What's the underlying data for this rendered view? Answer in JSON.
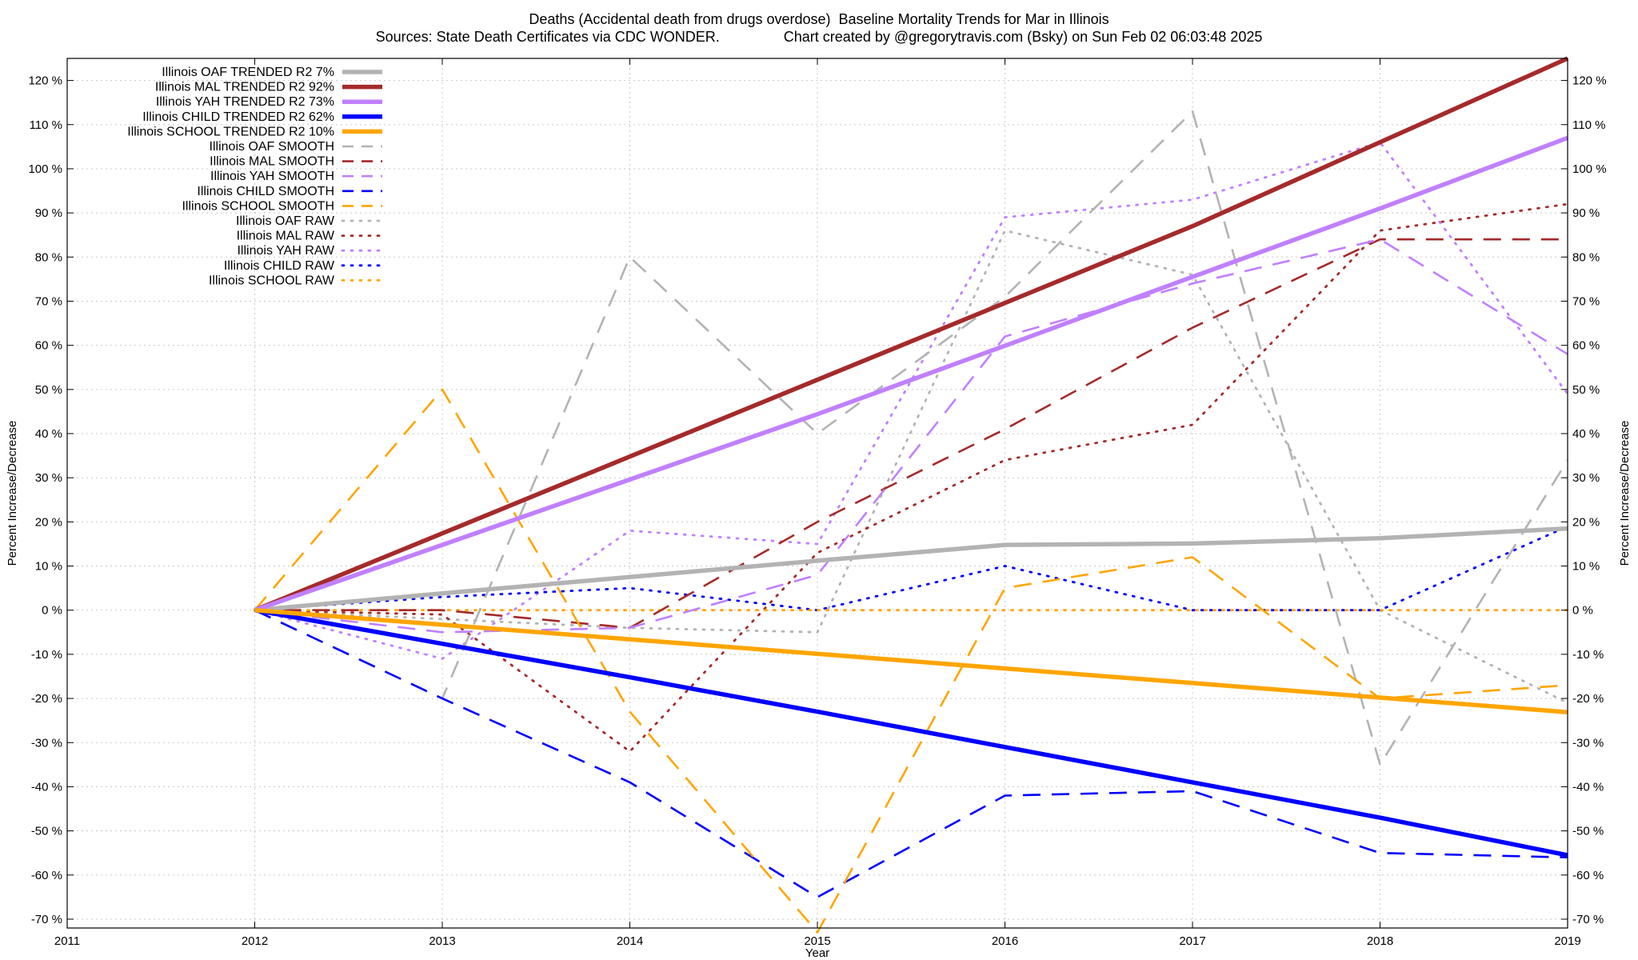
{
  "title_line1": "Deaths (Accidental death from drugs overdose)  Baseline Mortality Trends for Mar in Illinois",
  "title_line2": "Sources: State Death Certificates via CDC WONDER.                Chart created by @gregorytravis.com (Bsky) on Sun Feb 02 06:03:48 2025",
  "chart_data": {
    "type": "line",
    "xlabel": "Year",
    "ylabel": "Percent Increase/Decrease",
    "y2label": "Percent Increase/Decrease",
    "xlim": [
      2011,
      2019
    ],
    "ylim": [
      -72,
      125
    ],
    "x_ticks": [
      2011,
      2012,
      2013,
      2014,
      2015,
      2016,
      2017,
      2018,
      2019
    ],
    "y_ticks": [
      -70,
      -60,
      -50,
      -40,
      -30,
      -20,
      -10,
      0,
      10,
      20,
      30,
      40,
      50,
      60,
      70,
      80,
      90,
      100,
      110,
      120
    ],
    "y_tick_suffix": " %",
    "grid": true,
    "legend_position": "top-left",
    "series": [
      {
        "name": "Illinois OAF TRENDED R2   7%",
        "style": "trend",
        "color": "#b3b3b3",
        "x": [
          2012,
          2013,
          2014,
          2015,
          2016,
          2017,
          2018,
          2019
        ],
        "y": [
          0,
          3.8,
          7.5,
          11.2,
          14.8,
          15.1,
          16.3,
          18.5
        ]
      },
      {
        "name": "Illinois MAL TRENDED R2  92%",
        "style": "trend",
        "color": "#a52a2a",
        "x": [
          2012,
          2013,
          2014,
          2015,
          2016,
          2017,
          2018,
          2019
        ],
        "y": [
          0,
          17.4,
          34.8,
          52.2,
          69.6,
          87,
          106,
          125
        ]
      },
      {
        "name": "Illinois YAH TRENDED R2  73%",
        "style": "trend",
        "color": "#c080ff",
        "x": [
          2012,
          2013,
          2014,
          2015,
          2016,
          2017,
          2018,
          2019
        ],
        "y": [
          0,
          14.8,
          29.6,
          44.4,
          59.9,
          75.5,
          91,
          107
        ]
      },
      {
        "name": "Illinois CHILD TRENDED R2  62%",
        "style": "trend",
        "color": "#0000ff",
        "x": [
          2012,
          2013,
          2014,
          2015,
          2016,
          2017,
          2018,
          2019
        ],
        "y": [
          0,
          -7.6,
          -15.2,
          -23,
          -31,
          -39,
          -47,
          -55.5
        ]
      },
      {
        "name": "Illinois SCHOOL TRENDED R2  10%",
        "style": "trend",
        "color": "#ffa500",
        "x": [
          2012,
          2013,
          2014,
          2015,
          2016,
          2017,
          2018,
          2019
        ],
        "y": [
          0,
          -3.3,
          -6.6,
          -9.9,
          -13.2,
          -16.5,
          -19.8,
          -23.1
        ]
      },
      {
        "name": "Illinois OAF SMOOTH",
        "style": "smooth",
        "color": "#b3b3b3",
        "x": [
          2012,
          2013,
          2014,
          2015,
          2016,
          2017,
          2018,
          2019
        ],
        "y": [
          0,
          -20,
          80,
          40,
          71,
          113,
          -35,
          34
        ]
      },
      {
        "name": "Illinois MAL SMOOTH",
        "style": "smooth",
        "color": "#a52a2a",
        "x": [
          2012,
          2013,
          2014,
          2015,
          2016,
          2017,
          2018,
          2019
        ],
        "y": [
          0,
          0,
          -4,
          20,
          41,
          64,
          84,
          84
        ]
      },
      {
        "name": "Illinois YAH SMOOTH",
        "style": "smooth",
        "color": "#c080ff",
        "x": [
          2012,
          2013,
          2014,
          2015,
          2016,
          2017,
          2018,
          2019
        ],
        "y": [
          0,
          -5,
          -4,
          8,
          62,
          74,
          84,
          58
        ]
      },
      {
        "name": "Illinois CHILD SMOOTH",
        "style": "smooth",
        "color": "#0000ff",
        "x": [
          2012,
          2013,
          2014,
          2015,
          2016,
          2017,
          2018,
          2019
        ],
        "y": [
          0,
          -20,
          -39,
          -65,
          -42,
          -41,
          -55,
          -56
        ]
      },
      {
        "name": "Illinois SCHOOL SMOOTH",
        "style": "smooth",
        "color": "#ffa500",
        "x": [
          2012,
          2013,
          2014,
          2015,
          2016,
          2017,
          2018,
          2019
        ],
        "y": [
          0,
          50,
          -23,
          -73,
          5,
          12,
          -20,
          -17
        ]
      },
      {
        "name": "Illinois OAF RAW",
        "style": "raw",
        "color": "#b3b3b3",
        "x": [
          2012,
          2013,
          2014,
          2015,
          2016,
          2017,
          2018,
          2019
        ],
        "y": [
          0,
          -2,
          -4,
          -5,
          86,
          76,
          0,
          -21
        ]
      },
      {
        "name": "Illinois MAL RAW",
        "style": "raw",
        "color": "#a52a2a",
        "x": [
          2012,
          2013,
          2014,
          2015,
          2016,
          2017,
          2018,
          2019
        ],
        "y": [
          0,
          -1,
          -32,
          13,
          34,
          42,
          86,
          92
        ]
      },
      {
        "name": "Illinois YAH RAW",
        "style": "raw",
        "color": "#c080ff",
        "x": [
          2012,
          2013,
          2014,
          2015,
          2016,
          2017,
          2018,
          2019
        ],
        "y": [
          0,
          -11,
          18,
          15,
          89,
          93,
          106,
          49
        ]
      },
      {
        "name": "Illinois CHILD RAW",
        "style": "raw",
        "color": "#0000ff",
        "x": [
          2012,
          2013,
          2014,
          2015,
          2016,
          2017,
          2018,
          2019
        ],
        "y": [
          0,
          3,
          5,
          0,
          10,
          0,
          0,
          19
        ]
      },
      {
        "name": "Illinois SCHOOL RAW",
        "style": "raw",
        "color": "#ffa500",
        "x": [
          2012,
          2013,
          2014,
          2015,
          2016,
          2017,
          2018,
          2019
        ],
        "y": [
          0,
          0,
          0,
          0,
          0,
          0,
          0,
          0
        ]
      }
    ]
  }
}
